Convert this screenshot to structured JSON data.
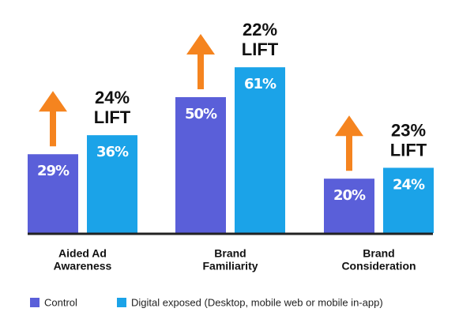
{
  "chart_data": {
    "type": "bar",
    "categories": [
      [
        "Aided Ad",
        "Awareness"
      ],
      [
        "Brand",
        "Familiarity"
      ],
      [
        "Brand",
        "Consideration"
      ]
    ],
    "series": [
      {
        "name": "Control",
        "color": "#5a5fd9",
        "values": [
          29,
          50,
          20
        ],
        "value_labels": [
          "29%",
          "50%",
          "20%"
        ]
      },
      {
        "name": "Digital exposed (Desktop, mobile web or mobile in-app)",
        "color": "#1ba3e8",
        "values": [
          36,
          61,
          24
        ],
        "value_labels": [
          "36%",
          "61%",
          "24%"
        ]
      }
    ],
    "annotations": [
      [
        "24%",
        "LIFT"
      ],
      [
        "22%",
        "LIFT"
      ],
      [
        "23%",
        "LIFT"
      ]
    ],
    "arrow_color": "#f5841f",
    "baseline_color": "#222"
  }
}
